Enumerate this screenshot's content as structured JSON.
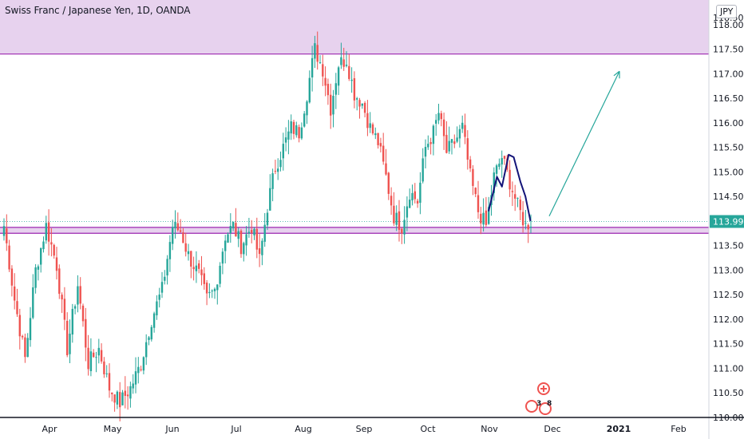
{
  "header": {
    "title": "Swiss Franc / Japanese Yen, 1D, OANDA",
    "currency": "JPY"
  },
  "price_axis": {
    "labels": [
      "118.000",
      "117.500",
      "117.000",
      "116.500",
      "116.000",
      "115.500",
      "115.000",
      "114.500",
      "113.500",
      "113.000",
      "112.500",
      "112.000",
      "111.500",
      "111.000",
      "110.500",
      "110.000"
    ],
    "top_label": "118.500",
    "last_price": "113.990",
    "last_price_color": "#26a69a"
  },
  "colors": {
    "up": "#26a69a",
    "down": "#ef5350",
    "zone_fill": "#e7d2ee",
    "zone_line": "#9c27b0",
    "trend_arrow": "#26a69a",
    "hs_line": "#131378"
  },
  "events": {
    "count_a": "3",
    "count_b": "8"
  },
  "chart_data": {
    "type": "candlestick",
    "title": "Swiss Franc / Japanese Yen, 1D, OANDA",
    "x_axis_labels": [
      "Apr",
      "May",
      "Jun",
      "Jul",
      "Aug",
      "Sep",
      "Oct",
      "Nov",
      "Dec",
      "2021",
      "Feb"
    ],
    "y_range": [
      110.0,
      118.5
    ],
    "last_price": 113.99,
    "resistance_zone": [
      117.4,
      118.5
    ],
    "support_zone": [
      113.75,
      113.87
    ],
    "projection": {
      "from_price": 114.1,
      "to_price": 117.05
    },
    "anchors": [
      [
        0,
        113.9
      ],
      [
        4,
        112.4
      ],
      [
        8,
        111.2
      ],
      [
        12,
        113.0
      ],
      [
        16,
        113.9
      ],
      [
        20,
        113.1
      ],
      [
        24,
        111.4
      ],
      [
        28,
        112.7
      ],
      [
        32,
        111.1
      ],
      [
        36,
        111.4
      ],
      [
        40,
        110.6
      ],
      [
        44,
        110.3
      ],
      [
        48,
        110.6
      ],
      [
        52,
        111.1
      ],
      [
        56,
        112.0
      ],
      [
        60,
        112.6
      ],
      [
        64,
        113.9
      ],
      [
        67,
        113.8
      ],
      [
        70,
        113.3
      ],
      [
        74,
        112.9
      ],
      [
        77,
        112.4
      ],
      [
        80,
        112.6
      ],
      [
        84,
        113.7
      ],
      [
        87,
        113.9
      ],
      [
        90,
        113.5
      ],
      [
        94,
        113.9
      ],
      [
        97,
        113.2
      ],
      [
        100,
        114.3
      ],
      [
        103,
        115.1
      ],
      [
        106,
        115.5
      ],
      [
        109,
        115.9
      ],
      [
        112,
        115.8
      ],
      [
        115,
        116.6
      ],
      [
        118,
        117.5
      ],
      [
        121,
        117.1
      ],
      [
        124,
        116.3
      ],
      [
        127,
        117.2
      ],
      [
        130,
        117.3
      ],
      [
        133,
        116.6
      ],
      [
        136,
        116.4
      ],
      [
        139,
        115.9
      ],
      [
        142,
        115.6
      ],
      [
        145,
        114.9
      ],
      [
        148,
        114.1
      ],
      [
        151,
        113.9
      ],
      [
        154,
        114.6
      ],
      [
        157,
        114.4
      ],
      [
        160,
        115.5
      ],
      [
        163,
        115.8
      ],
      [
        165,
        116.2
      ],
      [
        168,
        115.4
      ],
      [
        171,
        115.6
      ],
      [
        174,
        115.9
      ],
      [
        177,
        114.9
      ],
      [
        180,
        114.2
      ],
      [
        183,
        113.9
      ],
      [
        186,
        114.9
      ],
      [
        189,
        115.3
      ],
      [
        192,
        114.8
      ],
      [
        195,
        114.3
      ],
      [
        198,
        113.9
      ],
      [
        200,
        113.99
      ]
    ]
  }
}
